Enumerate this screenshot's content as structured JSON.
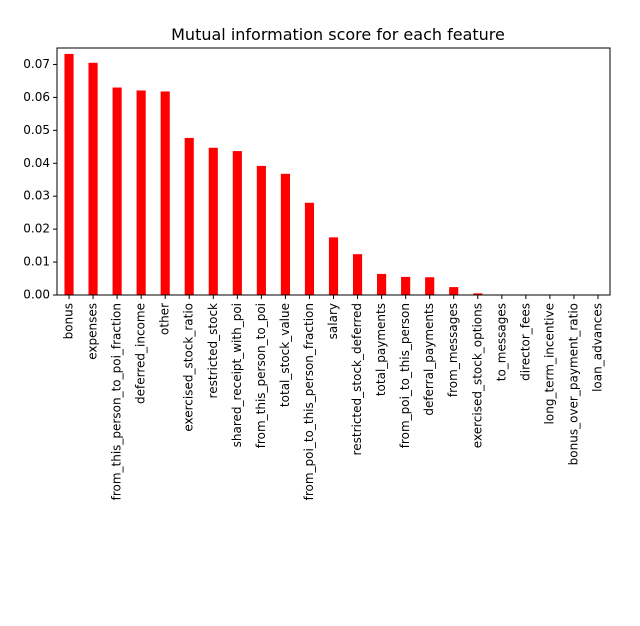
{
  "chart_data": {
    "type": "bar",
    "title": "Mutual information score for each feature",
    "xlabel": "",
    "ylabel": "",
    "ylim": [
      0,
      0.075
    ],
    "yticks": [
      "0.00",
      "0.01",
      "0.02",
      "0.03",
      "0.04",
      "0.05",
      "0.06",
      "0.07"
    ],
    "bar_color": "#ff0000",
    "grid": false,
    "legend": "none",
    "categories": [
      "bonus",
      "expenses",
      "from_this_person_to_poi_fraction",
      "deferred_income",
      "other",
      "exercised_stock_ratio",
      "restricted_stock",
      "shared_receipt_with_poi",
      "from_this_person_to_poi",
      "total_stock_value",
      "from_poi_to_this_person_fraction",
      "salary",
      "restricted_stock_deferred",
      "total_payments",
      "from_poi_to_this_person",
      "deferral_payments",
      "from_messages",
      "exercised_stock_options",
      "to_messages",
      "director_fees",
      "long_term_incentive",
      "bonus_over_payment_ratio",
      "loan_advances"
    ],
    "values": [
      0.0732,
      0.0705,
      0.063,
      0.0621,
      0.0618,
      0.0477,
      0.0447,
      0.0437,
      0.0392,
      0.0368,
      0.028,
      0.0175,
      0.0124,
      0.0064,
      0.0055,
      0.0054,
      0.0024,
      0.0005,
      0.0,
      0.0,
      0.0,
      0.0,
      0.0
    ]
  }
}
